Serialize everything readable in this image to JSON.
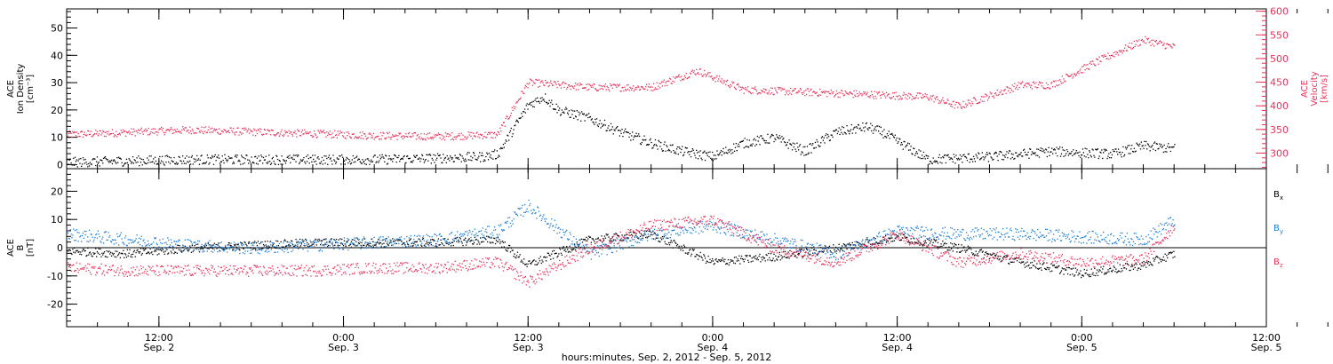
{
  "chart_data": [
    {
      "type": "scatter",
      "panel": "top",
      "title": "",
      "xlabel": "hours:minutes, Sep. 2, 2012 - Sep. 5, 2012",
      "ylabel": "ACE Ion Density [cm⁻³]",
      "ylabel_lines": [
        "ACE",
        "Ion Density",
        "[cm⁻³]"
      ],
      "ylim": [
        -1.5,
        57
      ],
      "yticks": [
        0,
        10,
        20,
        30,
        40,
        50
      ],
      "right_axis": {
        "label_lines": [
          "ACE",
          "Velocity",
          "[km/s]"
        ],
        "ylim": [
          267,
          605
        ],
        "yticks": [
          300,
          350,
          400,
          450,
          500,
          550,
          600
        ],
        "color": "#e8325a"
      },
      "series": [
        {
          "name": "Ion Density",
          "axis": "left",
          "color": "#000000",
          "x": [
            "2012-09-02 06:00",
            "2012-09-02 10:00",
            "2012-09-02 14:00",
            "2012-09-02 18:00",
            "2012-09-02 22:00",
            "2012-09-03 02:00",
            "2012-09-03 06:00",
            "2012-09-03 09:00",
            "2012-09-03 10:00",
            "2012-09-03 12:00",
            "2012-09-03 13:00",
            "2012-09-03 14:00",
            "2012-09-03 16:00",
            "2012-09-03 18:00",
            "2012-09-03 20:00",
            "2012-09-03 22:00",
            "2012-09-04 00:00",
            "2012-09-04 02:00",
            "2012-09-04 04:00",
            "2012-09-04 06:00",
            "2012-09-04 08:00",
            "2012-09-04 10:00",
            "2012-09-04 11:00",
            "2012-09-04 14:00",
            "2012-09-04 18:00",
            "2012-09-04 22:00",
            "2012-09-05 02:00",
            "2012-09-05 04:00",
            "2012-09-05 06:00"
          ],
          "values": [
            1,
            1.5,
            2,
            2,
            2,
            2,
            2.5,
            3,
            4,
            22,
            25,
            20,
            17,
            12,
            8,
            5,
            3,
            8,
            10,
            5,
            12,
            14,
            12,
            2,
            3,
            5,
            4,
            7,
            6
          ]
        },
        {
          "name": "Velocity",
          "axis": "right",
          "color": "#e8325a",
          "x": [
            "2012-09-02 06:00",
            "2012-09-02 10:00",
            "2012-09-02 14:00",
            "2012-09-02 18:00",
            "2012-09-02 22:00",
            "2012-09-03 02:00",
            "2012-09-03 06:00",
            "2012-09-03 10:00",
            "2012-09-03 12:00",
            "2012-09-03 16:00",
            "2012-09-03 20:00",
            "2012-09-03 23:00",
            "2012-09-04 02:00",
            "2012-09-04 06:00",
            "2012-09-04 10:00",
            "2012-09-04 14:00",
            "2012-09-04 16:00",
            "2012-09-04 20:00",
            "2012-09-04 22:00",
            "2012-09-05 01:00",
            "2012-09-05 04:00",
            "2012-09-05 06:00"
          ],
          "values": [
            340,
            345,
            350,
            346,
            342,
            338,
            336,
            340,
            450,
            440,
            440,
            475,
            435,
            430,
            425,
            420,
            400,
            445,
            445,
            495,
            540,
            525
          ]
        }
      ]
    },
    {
      "type": "scatter",
      "panel": "bottom",
      "title": "",
      "xlabel": "hours:minutes, Sep. 2, 2012 - Sep. 5, 2012",
      "ylabel": "ACE B [nT]",
      "ylabel_lines": [
        "ACE",
        "B",
        "[nT]"
      ],
      "ylim": [
        -28,
        28
      ],
      "yticks": [
        -20,
        -10,
        0,
        10,
        20
      ],
      "zero_line": true,
      "series": [
        {
          "name": "Bx",
          "name_main": "B",
          "name_sub": "x",
          "color": "#000000",
          "x": [
            "2012-09-02 06:00",
            "2012-09-02 10:00",
            "2012-09-02 14:00",
            "2012-09-02 18:00",
            "2012-09-02 22:00",
            "2012-09-03 02:00",
            "2012-09-03 06:00",
            "2012-09-03 10:00",
            "2012-09-03 12:00",
            "2012-09-03 16:00",
            "2012-09-03 20:00",
            "2012-09-04 00:00",
            "2012-09-04 04:00",
            "2012-09-04 08:00",
            "2012-09-04 12:00",
            "2012-09-04 16:00",
            "2012-09-04 20:00",
            "2012-09-05 00:00",
            "2012-09-05 04:00",
            "2012-09-05 06:00"
          ],
          "values": [
            -1,
            -2,
            0,
            1,
            2,
            2,
            2,
            3,
            -6,
            3,
            5,
            -5,
            -3,
            0,
            4,
            0,
            -5,
            -9,
            -6,
            -2
          ]
        },
        {
          "name": "By",
          "name_main": "B",
          "name_sub": "y",
          "color": "#1e7fd6",
          "x": [
            "2012-09-02 06:00",
            "2012-09-02 10:00",
            "2012-09-02 14:00",
            "2012-09-02 18:00",
            "2012-09-02 22:00",
            "2012-09-03 02:00",
            "2012-09-03 06:00",
            "2012-09-03 10:00",
            "2012-09-03 12:00",
            "2012-09-03 16:00",
            "2012-09-03 20:00",
            "2012-09-04 00:00",
            "2012-09-04 04:00",
            "2012-09-04 08:00",
            "2012-09-04 12:00",
            "2012-09-04 16:00",
            "2012-09-04 20:00",
            "2012-09-05 00:00",
            "2012-09-05 04:00",
            "2012-09-05 06:00"
          ],
          "values": [
            5,
            3,
            1,
            0,
            1,
            2,
            3,
            6,
            15,
            -2,
            5,
            8,
            3,
            -2,
            6,
            5,
            5,
            4,
            3,
            10
          ]
        },
        {
          "name": "Bz",
          "name_main": "B",
          "name_sub": "z",
          "color": "#e8325a",
          "x": [
            "2012-09-02 06:00",
            "2012-09-02 10:00",
            "2012-09-02 14:00",
            "2012-09-02 18:00",
            "2012-09-02 22:00",
            "2012-09-03 02:00",
            "2012-09-03 06:00",
            "2012-09-03 10:00",
            "2012-09-03 12:00",
            "2012-09-03 16:00",
            "2012-09-03 20:00",
            "2012-09-04 00:00",
            "2012-09-04 04:00",
            "2012-09-04 08:00",
            "2012-09-04 12:00",
            "2012-09-04 16:00",
            "2012-09-04 20:00",
            "2012-09-05 00:00",
            "2012-09-05 04:00",
            "2012-09-05 06:00"
          ],
          "values": [
            -7,
            -8,
            -8,
            -8,
            -8,
            -7,
            -7,
            -5,
            -12,
            0,
            8,
            10,
            0,
            -5,
            5,
            -5,
            -2,
            -5,
            -4,
            8
          ]
        }
      ]
    }
  ],
  "x_axis": {
    "range": [
      "2012-09-02 06:00",
      "2012-09-05 12:00"
    ],
    "ticks": [
      {
        "x": "2012-09-02 12:00",
        "time": "12:00",
        "date": "Sep. 2"
      },
      {
        "x": "2012-09-03 00:00",
        "time": "0:00",
        "date": "Sep. 3"
      },
      {
        "x": "2012-09-03 12:00",
        "time": "12:00",
        "date": "Sep. 3"
      },
      {
        "x": "2012-09-04 00:00",
        "time": "0:00",
        "date": "Sep. 4"
      },
      {
        "x": "2012-09-04 12:00",
        "time": "12:00",
        "date": "Sep. 4"
      },
      {
        "x": "2012-09-05 00:00",
        "time": "0:00",
        "date": "Sep. 5"
      },
      {
        "x": "2012-09-05 12:00",
        "time": "12:00",
        "date": "Sep. 5"
      }
    ],
    "label": "hours:minutes, Sep.  2, 2012 - Sep.  5, 2012"
  }
}
